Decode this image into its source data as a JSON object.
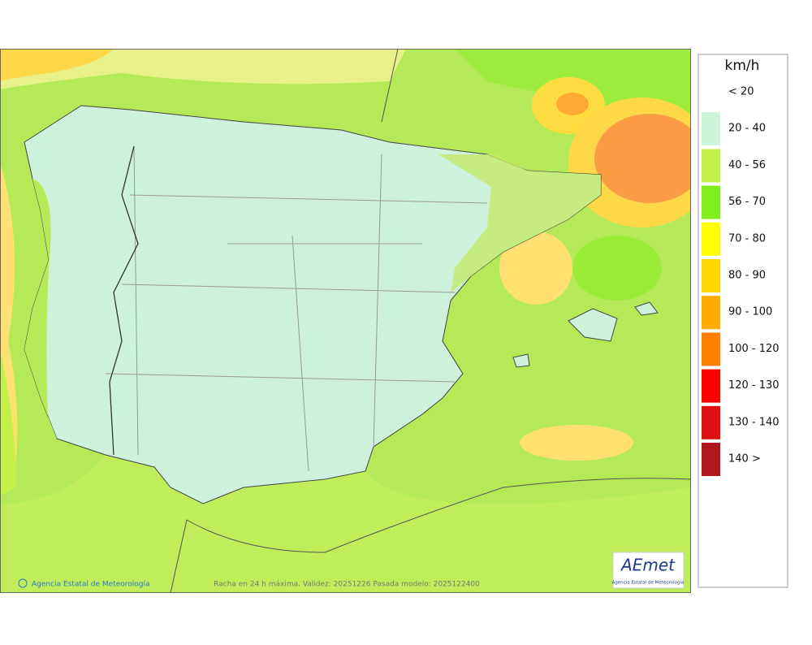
{
  "legend": {
    "title": "km/h",
    "items": [
      {
        "label": "< 20"
      },
      {
        "label": "20 - 40",
        "color": "#ccf5dc"
      },
      {
        "label": "40 - 56",
        "color": "#c4f04a"
      },
      {
        "label": "56 - 70",
        "color": "#80ee18"
      },
      {
        "label": "70 - 80",
        "color": "#ffff00"
      },
      {
        "label": "80 - 90",
        "color": "#ffd400"
      },
      {
        "label": "90 - 100",
        "color": "#ffaa00"
      },
      {
        "label": "100 - 120",
        "color": "#ff8000"
      },
      {
        "label": "120 - 130",
        "color": "#ff0000"
      },
      {
        "label": "130 - 140",
        "color": "#dd1111"
      },
      {
        "label": "140 >",
        "color": "#b0161e"
      }
    ]
  },
  "footer": {
    "credit": "Agencia Estatal de Meteorología",
    "caption": "Racha en 24 h máxima. Validez: 20251226 Pasada modelo: 2025122400"
  },
  "logo": {
    "text": "AEmet",
    "subtitle": "Agencia Estatal de Meteorología"
  }
}
